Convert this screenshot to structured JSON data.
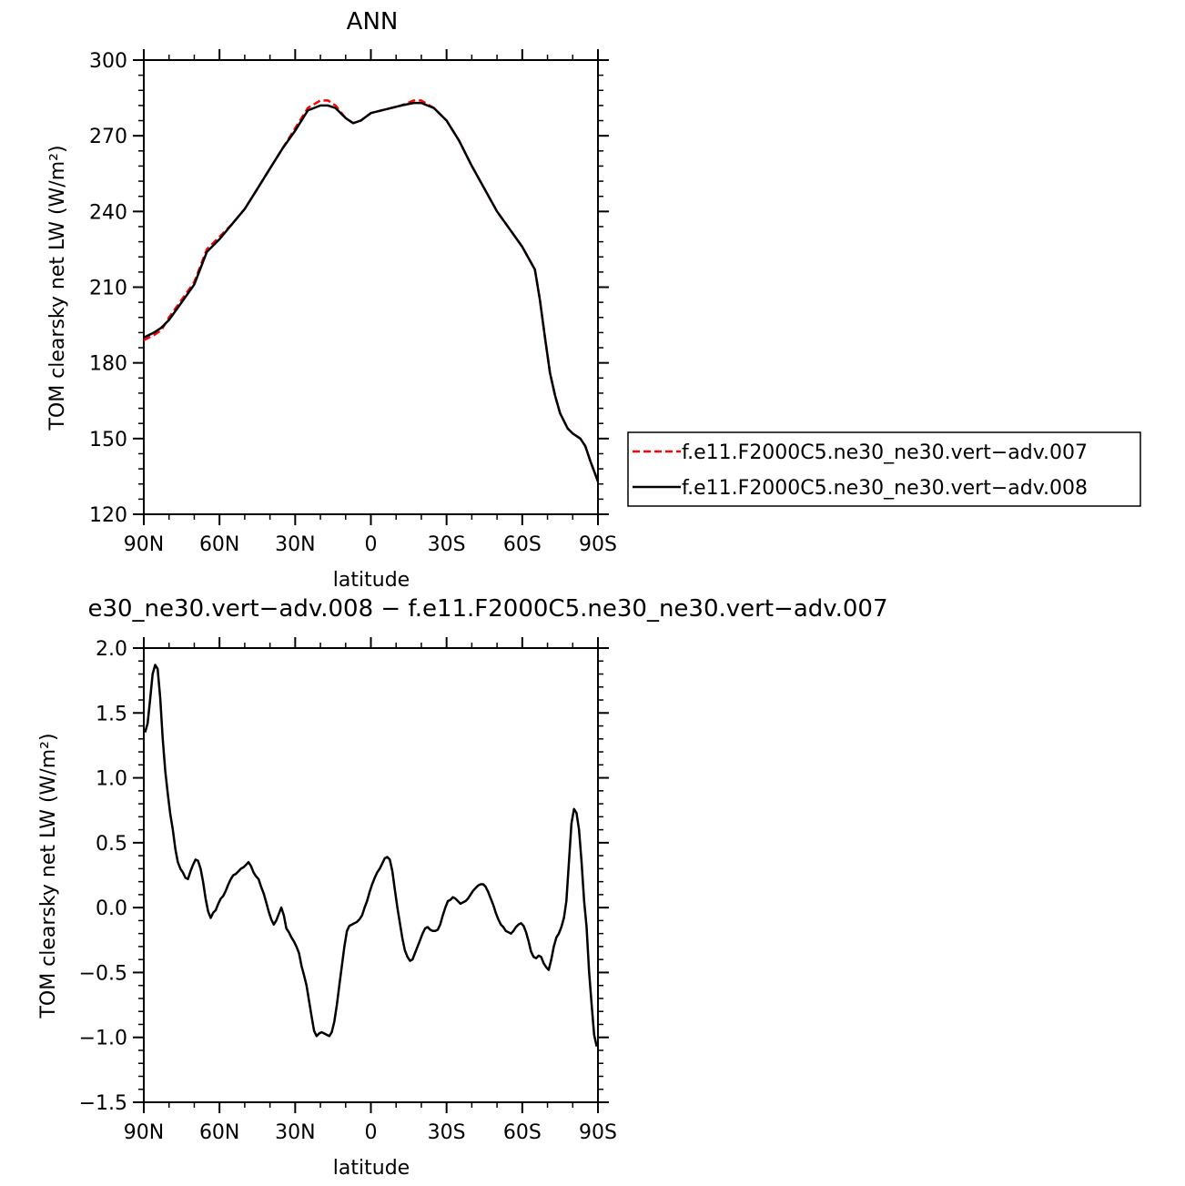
{
  "chart_data": [
    {
      "type": "line",
      "title": "ANN",
      "xlabel": "latitude",
      "ylabel": "TOM clearsky net LW (W/m²)",
      "xlim": [
        -90,
        90
      ],
      "ylim": [
        120,
        300
      ],
      "x_ticks": [
        -90,
        -60,
        -30,
        0,
        30,
        60,
        90
      ],
      "x_tick_labels": [
        "90N",
        "60N",
        "30N",
        "0",
        "30S",
        "60S",
        "90S"
      ],
      "y_ticks": [
        120,
        150,
        180,
        210,
        240,
        270,
        300
      ],
      "y_tick_labels": [
        "120",
        "150",
        "180",
        "210",
        "240",
        "270",
        "300"
      ],
      "legend": {
        "placement": "right",
        "entries": [
          {
            "label": "f.e11.F2000C5.ne30_ne30.vert−adv.007",
            "color": "#ff0000",
            "dash": "dashed"
          },
          {
            "label": "f.e11.F2000C5.ne30_ne30.vert−adv.008",
            "color": "#000000",
            "dash": "solid"
          }
        ]
      },
      "series": [
        {
          "color": "#ff0000",
          "dash": "dashed",
          "x": [
            -90,
            -86,
            -83,
            -80,
            -75,
            -70,
            -65,
            -60,
            -55,
            -50,
            -45,
            -40,
            -35,
            -30,
            -25,
            -20,
            -17,
            -14,
            -10,
            -7,
            -4,
            0,
            4,
            8,
            12,
            17,
            20,
            25,
            30,
            35,
            40,
            45,
            50,
            55,
            60,
            65,
            67,
            69,
            71,
            73,
            75,
            78,
            80,
            83,
            85,
            87,
            90
          ],
          "y": [
            189,
            191,
            193,
            198,
            205,
            212,
            225,
            230,
            235,
            241,
            249,
            257,
            265,
            273,
            281,
            284,
            284,
            282,
            277,
            275,
            276,
            279,
            280,
            281,
            282,
            284,
            284,
            281,
            276,
            268,
            258,
            249,
            240,
            233,
            226,
            217,
            205,
            190,
            176,
            167,
            160,
            154,
            152,
            150,
            147,
            141,
            133
          ]
        },
        {
          "color": "#000000",
          "dash": "solid",
          "x": [
            -90,
            -86,
            -83,
            -80,
            -75,
            -70,
            -65,
            -60,
            -55,
            -50,
            -45,
            -40,
            -35,
            -30,
            -25,
            -20,
            -17,
            -14,
            -10,
            -7,
            -4,
            0,
            4,
            8,
            12,
            17,
            20,
            25,
            30,
            35,
            40,
            45,
            50,
            55,
            60,
            65,
            67,
            69,
            71,
            73,
            75,
            78,
            80,
            83,
            85,
            87,
            90
          ],
          "y": [
            190,
            192,
            194,
            197,
            204,
            211,
            224,
            229,
            235,
            241,
            249,
            257,
            265,
            272,
            280,
            282,
            282,
            281,
            277,
            275,
            276,
            279,
            280,
            281,
            282,
            283,
            283,
            281,
            276,
            268,
            258,
            249,
            240,
            233,
            226,
            217,
            205,
            190,
            176,
            167,
            160,
            154,
            152,
            150,
            147,
            141,
            133
          ]
        }
      ]
    },
    {
      "type": "line",
      "title": "e30_ne30.vert−adv.008 − f.e11.F2000C5.ne30_ne30.vert−adv.007",
      "xlabel": "latitude",
      "ylabel": "TOM clearsky net LW (W/m²)",
      "xlim": [
        -90,
        90
      ],
      "ylim": [
        -1.5,
        2.0
      ],
      "x_ticks": [
        -90,
        -60,
        -30,
        0,
        30,
        60,
        90
      ],
      "x_tick_labels": [
        "90N",
        "60N",
        "30N",
        "0",
        "30S",
        "60S",
        "90S"
      ],
      "y_ticks": [
        -1.5,
        -1.0,
        -0.5,
        0.0,
        0.5,
        1.0,
        1.5,
        2.0
      ],
      "y_tick_labels": [
        "−1.5",
        "−1.0",
        "−0.5",
        "0.0",
        "0.5",
        "1.0",
        "1.5",
        "2.0"
      ],
      "series": [
        {
          "color": "#000000",
          "dash": "solid",
          "x": [
            -89.5,
            -88.5,
            -87.5,
            -86.5,
            -85.5,
            -84.5,
            -83.5,
            -82.5,
            -81.5,
            -80.5,
            -79.5,
            -78.5,
            -77.5,
            -76.5,
            -75.5,
            -74.5,
            -73.5,
            -72.5,
            -71.5,
            -70.5,
            -69.5,
            -68.5,
            -67.5,
            -66.5,
            -65.5,
            -64.5,
            -63.5,
            -62.5,
            -61.5,
            -60.5,
            -59.5,
            -58.5,
            -57.5,
            -56.5,
            -55.5,
            -54.5,
            -53.5,
            -52.5,
            -51.5,
            -50.5,
            -49.5,
            -48.5,
            -47.5,
            -46.5,
            -45.5,
            -44.5,
            -43.5,
            -42.5,
            -41.5,
            -40.5,
            -39.5,
            -38.5,
            -37.5,
            -36.5,
            -35.5,
            -34.5,
            -33.5,
            -32.5,
            -31.5,
            -30.5,
            -29.5,
            -28.5,
            -27.5,
            -26.5,
            -25.5,
            -24.5,
            -23.5,
            -22.5,
            -21.5,
            -20.5,
            -19.5,
            -18.5,
            -17.5,
            -16.5,
            -15.5,
            -14.5,
            -13.5,
            -12.5,
            -11.5,
            -10.5,
            -9.5,
            -8.5,
            -7.5,
            -6.5,
            -5.5,
            -4.5,
            -3.5,
            -2.5,
            -1.5,
            -0.5,
            0.5,
            1.5,
            2.5,
            3.5,
            4.5,
            5.5,
            6.5,
            7.5,
            8.5,
            9.5,
            10.5,
            11.5,
            12.5,
            13.5,
            14.5,
            15.5,
            16.5,
            17.5,
            18.5,
            19.5,
            20.5,
            21.5,
            22.5,
            23.5,
            24.5,
            25.5,
            26.5,
            27.5,
            28.5,
            29.5,
            30.5,
            31.5,
            32.5,
            33.5,
            34.5,
            35.5,
            36.5,
            37.5,
            38.5,
            39.5,
            40.5,
            41.5,
            42.5,
            43.5,
            44.5,
            45.5,
            46.5,
            47.5,
            48.5,
            49.5,
            50.5,
            51.5,
            52.5,
            53.5,
            54.5,
            55.5,
            56.5,
            57.5,
            58.5,
            59.5,
            60.5,
            61.5,
            62.5,
            63.5,
            64.5,
            65.5,
            66.5,
            67.5,
            68.5,
            69.5,
            70.5,
            71.5,
            72.5,
            73.5,
            74.5,
            75.5,
            76.5,
            77.5,
            78.5,
            79.5,
            80.5,
            81.5,
            82.5,
            83.5,
            84.5,
            85.5,
            86.5,
            87.5,
            88.5,
            89.5
          ],
          "y": [
            1.35,
            1.42,
            1.6,
            1.8,
            1.87,
            1.84,
            1.62,
            1.3,
            1.05,
            0.88,
            0.72,
            0.6,
            0.45,
            0.35,
            0.3,
            0.27,
            0.23,
            0.22,
            0.28,
            0.33,
            0.37,
            0.36,
            0.3,
            0.2,
            0.07,
            -0.03,
            -0.08,
            -0.04,
            -0.02,
            0.03,
            0.07,
            0.09,
            0.13,
            0.18,
            0.22,
            0.25,
            0.26,
            0.28,
            0.3,
            0.31,
            0.33,
            0.35,
            0.32,
            0.27,
            0.24,
            0.22,
            0.16,
            0.11,
            0.04,
            -0.03,
            -0.09,
            -0.13,
            -0.1,
            -0.05,
            0.0,
            -0.06,
            -0.16,
            -0.19,
            -0.23,
            -0.26,
            -0.3,
            -0.35,
            -0.45,
            -0.52,
            -0.6,
            -0.72,
            -0.84,
            -0.95,
            -0.99,
            -0.97,
            -0.96,
            -0.97,
            -0.98,
            -0.99,
            -0.96,
            -0.88,
            -0.75,
            -0.6,
            -0.45,
            -0.3,
            -0.18,
            -0.14,
            -0.13,
            -0.12,
            -0.11,
            -0.09,
            -0.06,
            0.0,
            0.05,
            0.12,
            0.18,
            0.23,
            0.27,
            0.3,
            0.34,
            0.38,
            0.39,
            0.37,
            0.28,
            0.14,
            0.0,
            -0.12,
            -0.24,
            -0.33,
            -0.38,
            -0.41,
            -0.4,
            -0.35,
            -0.3,
            -0.25,
            -0.2,
            -0.16,
            -0.15,
            -0.17,
            -0.18,
            -0.18,
            -0.17,
            -0.13,
            -0.06,
            0.0,
            0.05,
            0.06,
            0.08,
            0.07,
            0.05,
            0.03,
            0.04,
            0.05,
            0.07,
            0.1,
            0.13,
            0.15,
            0.17,
            0.18,
            0.18,
            0.16,
            0.12,
            0.07,
            0.02,
            -0.04,
            -0.09,
            -0.13,
            -0.15,
            -0.18,
            -0.19,
            -0.2,
            -0.18,
            -0.15,
            -0.13,
            -0.12,
            -0.14,
            -0.19,
            -0.26,
            -0.34,
            -0.38,
            -0.39,
            -0.37,
            -0.38,
            -0.43,
            -0.46,
            -0.48,
            -0.4,
            -0.3,
            -0.23,
            -0.2,
            -0.15,
            -0.08,
            0.05,
            0.35,
            0.65,
            0.76,
            0.73,
            0.6,
            0.35,
            0.05,
            -0.15,
            -0.5,
            -0.75,
            -0.98,
            -1.07
          ]
        }
      ]
    }
  ]
}
